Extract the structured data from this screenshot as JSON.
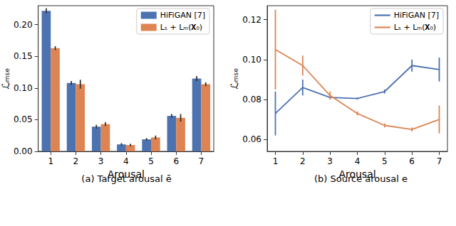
{
  "chart_data": [
    {
      "type": "bar",
      "title": "(a) Target arousal ē",
      "x_label": "Arousal",
      "y_label": "ℒₘₛₑ",
      "categories": [
        "1",
        "2",
        "3",
        "4",
        "5",
        "6",
        "7"
      ],
      "series": [
        {
          "name": "HiFiGAN [7]",
          "color": "#4c72b0",
          "values": [
            0.222,
            0.108,
            0.039,
            0.011,
            0.019,
            0.056,
            0.115
          ],
          "errors": [
            0.004,
            0.003,
            0.003,
            0.002,
            0.002,
            0.003,
            0.004
          ]
        },
        {
          "name": "Lₛ + Lₘ(𝐗₀)",
          "color": "#dd8452",
          "values": [
            0.163,
            0.106,
            0.043,
            0.01,
            0.022,
            0.053,
            0.106
          ],
          "errors": [
            0.003,
            0.007,
            0.003,
            0.002,
            0.003,
            0.006,
            0.003
          ]
        }
      ],
      "ylim": [
        0,
        0.23
      ],
      "yticks": [
        {
          "value": 0,
          "label": "0.00"
        },
        0.05,
        {
          "value": 0.1,
          "label": "0.10"
        },
        0.15,
        {
          "value": 0.2,
          "label": "0.20"
        }
      ],
      "legend": "upper right",
      "grid": false
    },
    {
      "type": "line",
      "title": "(b) Source arousal e",
      "x_label": "Arousal",
      "y_label": "ℒₘₛₑ",
      "x": [
        1,
        2,
        3,
        4,
        5,
        6,
        7
      ],
      "series": [
        {
          "name": "HiFiGAN [7]",
          "color": "#4c72b0",
          "values": [
            0.073,
            0.086,
            0.081,
            0.0805,
            0.084,
            0.097,
            0.095
          ],
          "errors": [
            0.011,
            0.004,
            0.001,
            0.0005,
            0.001,
            0.003,
            0.006
          ]
        },
        {
          "name": "Lₛ + Lₘ(𝐗₀)",
          "color": "#dd8452",
          "values": [
            0.105,
            0.097,
            0.082,
            0.073,
            0.067,
            0.065,
            0.07
          ],
          "errors": [
            0.02,
            0.005,
            0.002,
            0.001,
            0.001,
            0.001,
            0.007
          ]
        }
      ],
      "xlim": [
        0.7,
        7.3
      ],
      "xticks": [
        1,
        2,
        3,
        4,
        5,
        6,
        7
      ],
      "ylim": [
        0.054,
        0.127
      ],
      "yticks": [
        0.06,
        0.08,
        {
          "value": 0.1,
          "label": "0.10"
        },
        0.12
      ],
      "legend": "upper right",
      "grid": false
    }
  ]
}
